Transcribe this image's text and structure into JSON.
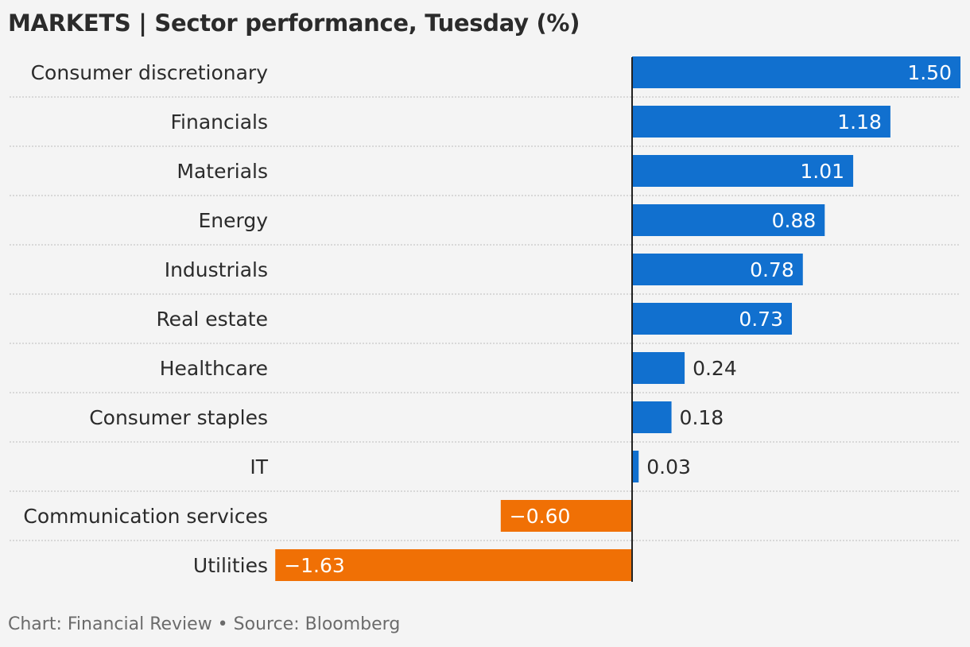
{
  "title": "MARKETS | Sector performance, Tuesday (%)",
  "footer": "Chart: Financial Review • Source: Bloomberg",
  "colors": {
    "positive": "#1170cf",
    "negative": "#f07005",
    "zero_line": "#222222",
    "separator": "#bdbdbd",
    "label": "#2b2b2b",
    "bar_text_inside": "#ffffff",
    "bar_text_outside": "#2b2b2b"
  },
  "chart_data": {
    "type": "bar",
    "orientation": "horizontal",
    "title": "MARKETS | Sector performance, Tuesday (%)",
    "categories": [
      "Consumer discretionary",
      "Financials",
      "Materials",
      "Energy",
      "Industrials",
      "Real estate",
      "Healthcare",
      "Consumer staples",
      "IT",
      "Communication services",
      "Utilities"
    ],
    "values": [
      1.5,
      1.18,
      1.01,
      0.88,
      0.78,
      0.73,
      0.24,
      0.18,
      0.03,
      -0.6,
      -1.63
    ],
    "value_labels": [
      "1.50",
      "1.18",
      "1.01",
      "0.88",
      "0.78",
      "0.73",
      "0.24",
      "0.18",
      "0.03",
      "−0.60",
      "−1.63"
    ],
    "xlim": [
      -1.63,
      1.5
    ],
    "grid": false,
    "legend": "none"
  }
}
